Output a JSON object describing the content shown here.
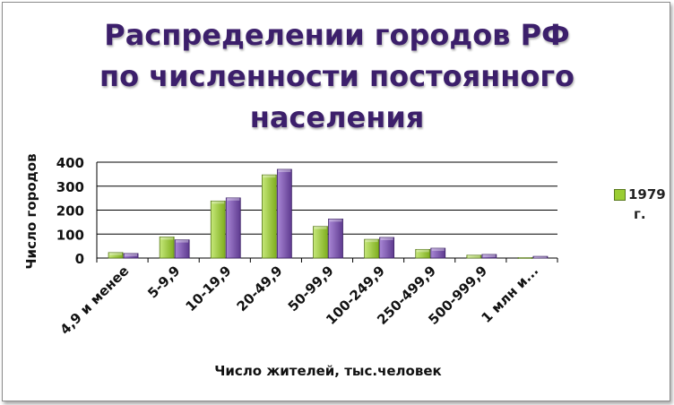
{
  "chart_data": {
    "type": "bar",
    "title_lines": [
      "Распределении городов РФ",
      "по численности постоянного",
      "населения"
    ],
    "xlabel": "Число жителей, тыс.человек",
    "ylabel": "Число городов",
    "ylim": [
      0,
      400
    ],
    "yticks": [
      "0",
      "100",
      "200",
      "300",
      "400"
    ],
    "grid": true,
    "legend_position": "right",
    "categories": [
      "4,9 и менее",
      "5-9,9",
      "10-19,9",
      "20-49,9",
      "50-99,9",
      "100-249,9",
      "250-499,9",
      "500-999,9",
      "1 млн и..."
    ],
    "series": [
      {
        "name": "1979 г.",
        "color": "#9acd32",
        "values": [
          23,
          88,
          238,
          347,
          132,
          78,
          36,
          12,
          2
        ]
      },
      {
        "color": "#7b52ab",
        "values": [
          19,
          76,
          251,
          370,
          163,
          86,
          41,
          15,
          7
        ]
      }
    ]
  },
  "legend": {
    "line1": "1979",
    "line2": "г."
  }
}
